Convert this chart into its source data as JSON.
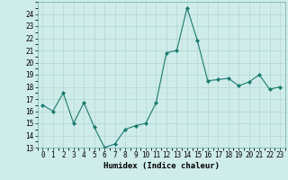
{
  "x": [
    0,
    1,
    2,
    3,
    4,
    5,
    6,
    7,
    8,
    9,
    10,
    11,
    12,
    13,
    14,
    15,
    16,
    17,
    18,
    19,
    20,
    21,
    22,
    23
  ],
  "y": [
    16.5,
    16.0,
    17.5,
    15.0,
    16.7,
    14.7,
    13.0,
    13.3,
    14.5,
    14.8,
    15.0,
    16.7,
    20.8,
    21.0,
    24.5,
    21.8,
    18.5,
    18.6,
    18.7,
    18.1,
    18.4,
    19.0,
    17.8,
    18.0
  ],
  "line_color": "#1a7a6e",
  "marker": "D",
  "marker_size": 2.0,
  "bg_color": "#ceecea",
  "grid_major_color": "#b8d8d5",
  "grid_minor_color": "#d0e8e6",
  "xlabel": "Humidex (Indice chaleur)",
  "xlim": [
    -0.5,
    23.5
  ],
  "ylim": [
    13,
    25
  ],
  "yticks": [
    13,
    14,
    15,
    16,
    17,
    18,
    19,
    20,
    21,
    22,
    23,
    24
  ],
  "xticks": [
    0,
    1,
    2,
    3,
    4,
    5,
    6,
    7,
    8,
    9,
    10,
    11,
    12,
    13,
    14,
    15,
    16,
    17,
    18,
    19,
    20,
    21,
    22,
    23
  ],
  "xlabel_fontsize": 6.5,
  "tick_fontsize": 5.5
}
